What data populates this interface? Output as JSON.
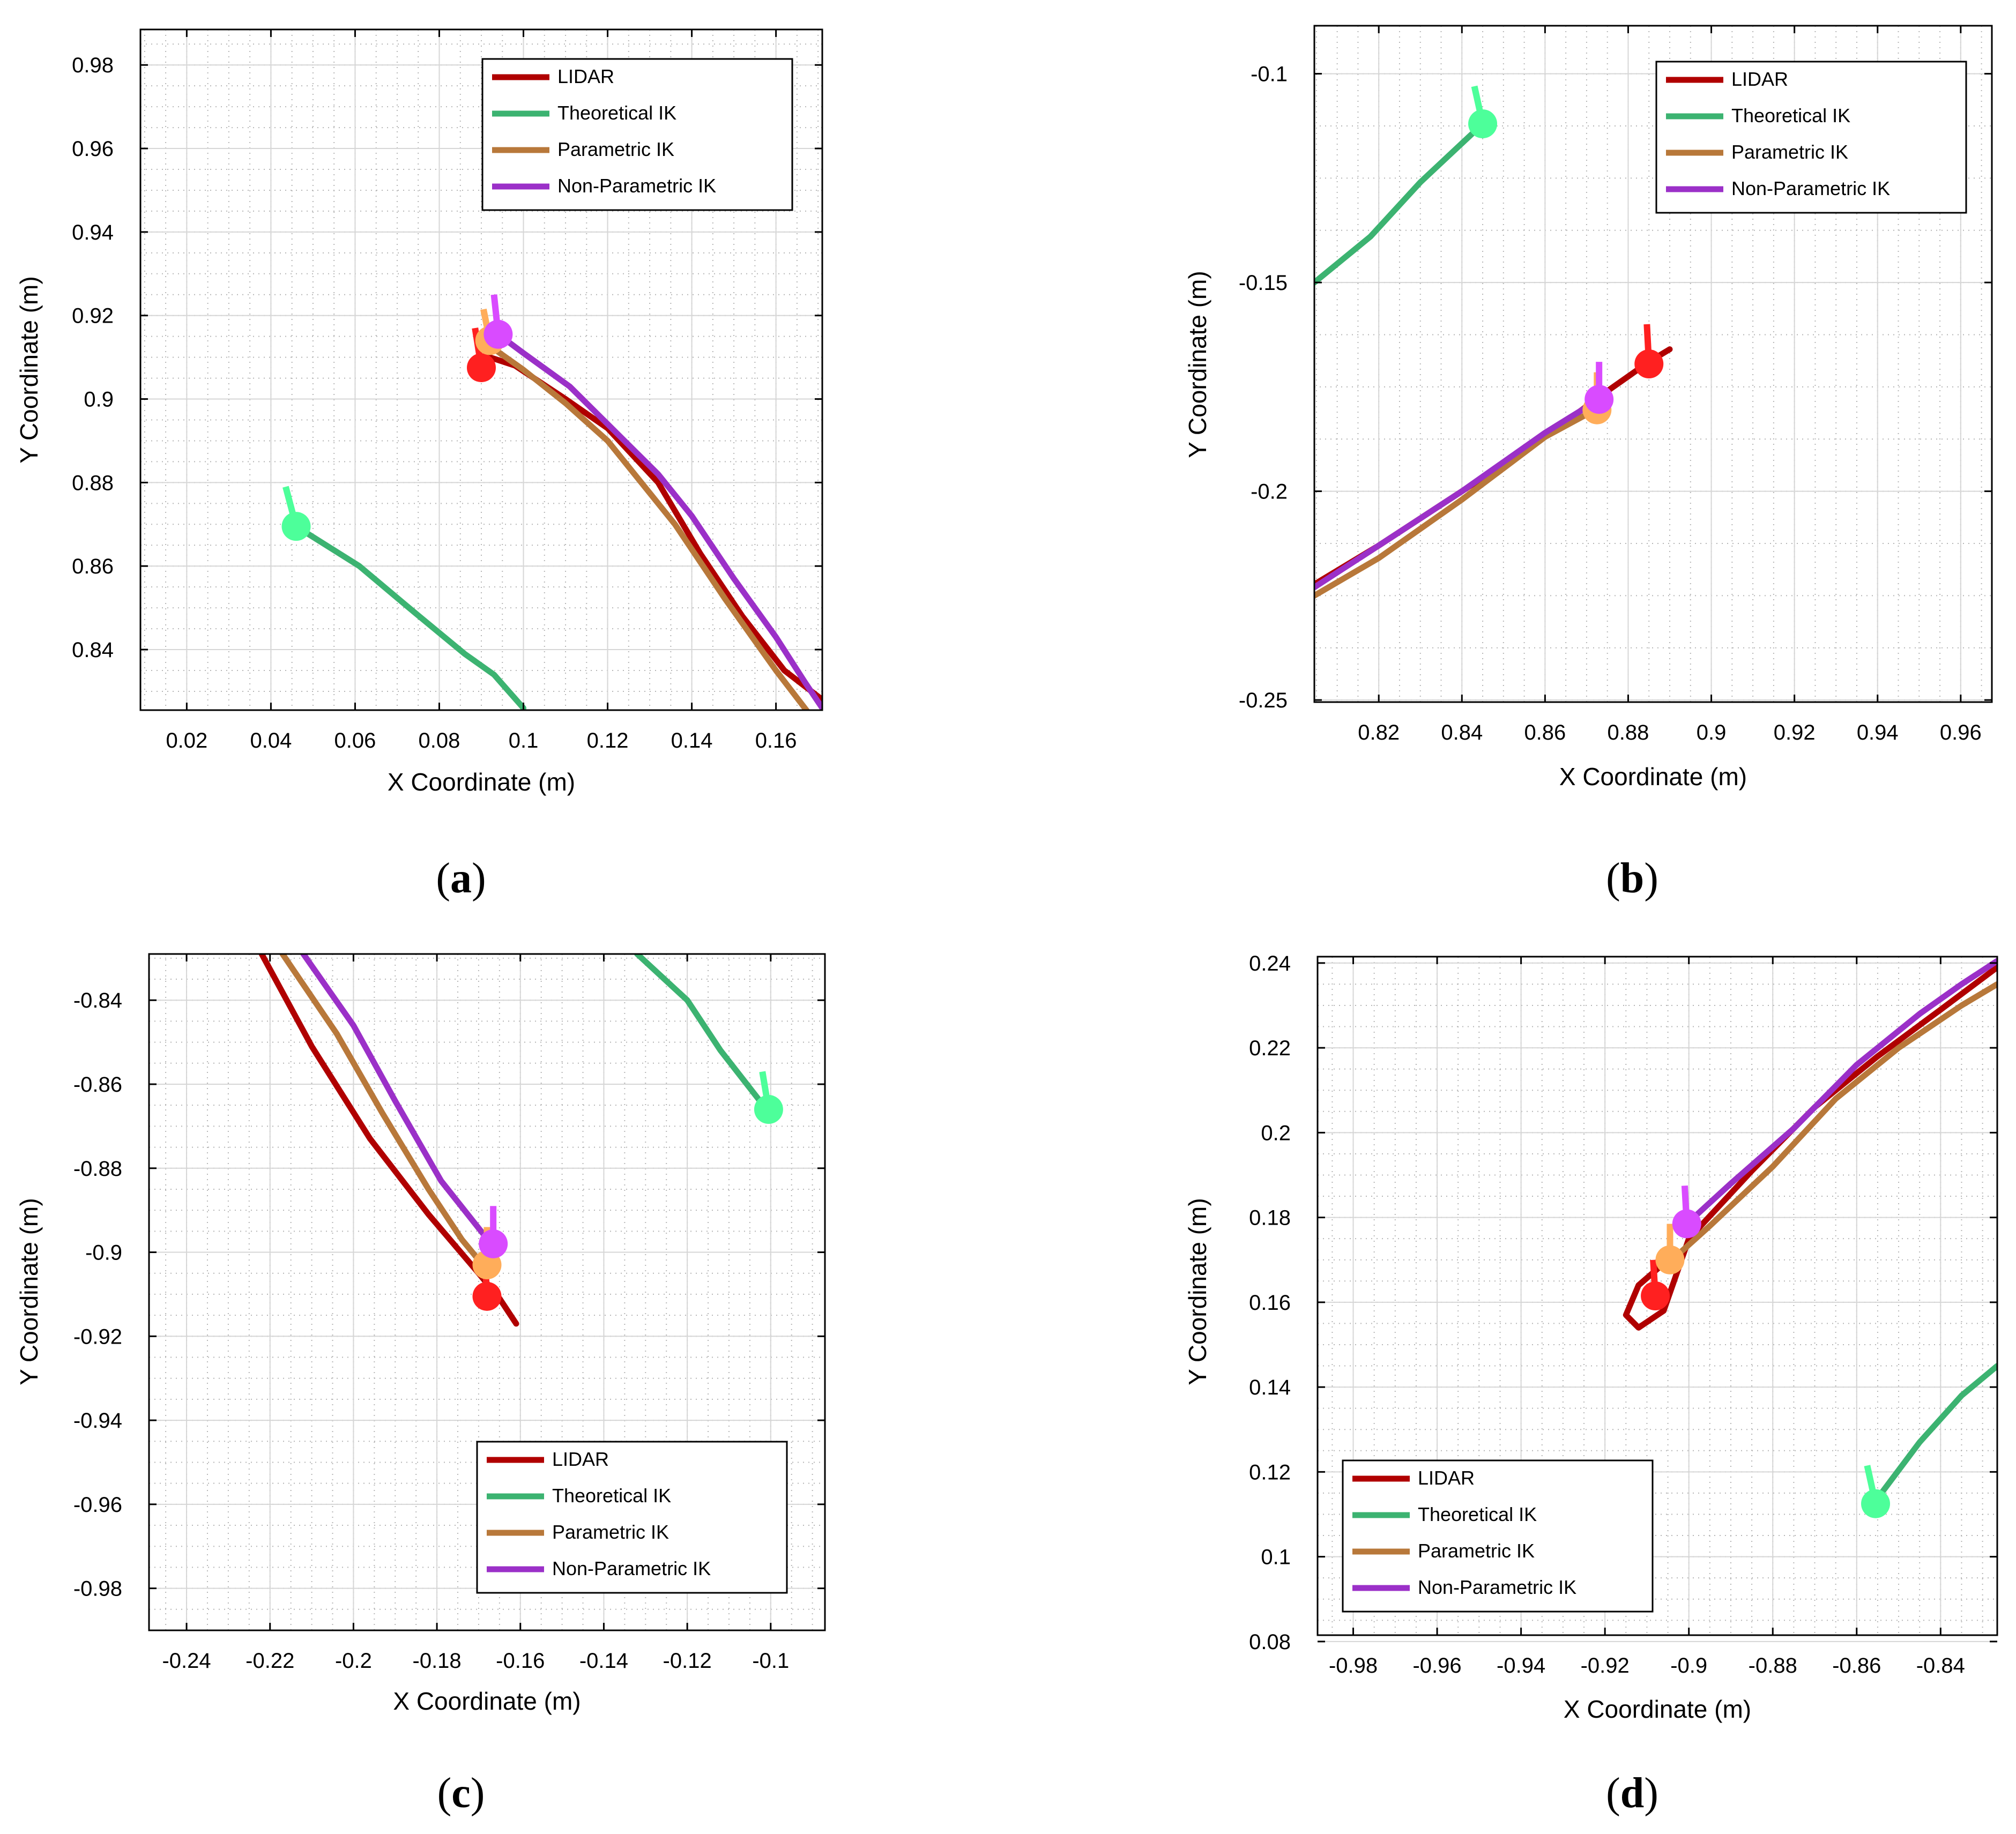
{
  "figure": {
    "series_names": [
      "LIDAR",
      "Theoretical IK",
      "Parametric IK",
      "Non-Parametric IK"
    ],
    "series_colors": [
      "#b00000",
      "#3cb371",
      "#b8783a",
      "#9b30c8"
    ],
    "marker_colors": [
      "#ff2020",
      "#4dff9a",
      "#ffad5a",
      "#d94bff"
    ]
  },
  "chart_data": [
    {
      "type": "line",
      "panel_label": "a",
      "xlabel": "X Coordinate (m)",
      "ylabel": "Y Coordinate (m)",
      "xlim": [
        0.009,
        0.171
      ],
      "ylim": [
        0.8255,
        0.9885
      ],
      "xticks": [
        0.02,
        0.04,
        0.06,
        0.08,
        0.1,
        0.12,
        0.14,
        0.16
      ],
      "xtick_labels": [
        "0.02",
        "0.04",
        "0.06",
        "0.08",
        "0.1",
        "0.12",
        "0.14",
        "0.16"
      ],
      "yticks": [
        0.84,
        0.86,
        0.88,
        0.9,
        0.92,
        0.94,
        0.96,
        0.98
      ],
      "ytick_labels": [
        "0.84",
        "0.86",
        "0.88",
        "0.9",
        "0.92",
        "0.94",
        "0.96",
        "0.98"
      ],
      "legend": "top-right",
      "legend_entries": [
        "LIDAR",
        "Theoretical IK",
        "Parametric IK",
        "Non-Parametric IK"
      ],
      "grid": true,
      "series": [
        {
          "name": "LIDAR",
          "x": [
            0.092,
            0.098,
            0.11,
            0.12,
            0.132,
            0.142,
            0.152,
            0.162,
            0.171
          ],
          "y": [
            0.91,
            0.908,
            0.9,
            0.893,
            0.88,
            0.863,
            0.848,
            0.835,
            0.828
          ],
          "marker": [
            0.09,
            0.9075
          ],
          "marker_dir": [
            -0.0015,
            0.0095
          ]
        },
        {
          "name": "Theoretical IK",
          "x": [
            0.046,
            0.061,
            0.074,
            0.086,
            0.093,
            0.1
          ],
          "y": [
            0.8695,
            0.86,
            0.849,
            0.839,
            0.834,
            0.826
          ],
          "marker": [
            0.046,
            0.8695
          ],
          "marker_dir": [
            -0.0025,
            0.0095
          ]
        },
        {
          "name": "Parametric IK",
          "x": [
            0.093,
            0.1,
            0.11,
            0.12,
            0.136,
            0.148,
            0.16,
            0.168
          ],
          "y": [
            0.912,
            0.907,
            0.899,
            0.89,
            0.87,
            0.852,
            0.835,
            0.8245
          ],
          "marker": [
            0.092,
            0.914
          ],
          "marker_dir": [
            -0.0015,
            0.0075
          ]
        },
        {
          "name": "Non-Parametric IK",
          "x": [
            0.094,
            0.1,
            0.111,
            0.122,
            0.132,
            0.14,
            0.15,
            0.16,
            0.167,
            0.171
          ],
          "y": [
            0.9155,
            0.911,
            0.903,
            0.892,
            0.882,
            0.872,
            0.857,
            0.843,
            0.832,
            0.826
          ],
          "marker": [
            0.094,
            0.9155
          ],
          "marker_dir": [
            -0.001,
            0.0095
          ]
        }
      ]
    },
    {
      "type": "line",
      "panel_label": "b",
      "xlabel": "X Coordinate (m)",
      "ylabel": "Y Coordinate (m)",
      "xlim": [
        0.8045,
        0.9675
      ],
      "ylim": [
        -0.2505,
        -0.0885
      ],
      "xticks": [
        0.82,
        0.84,
        0.86,
        0.88,
        0.9,
        0.92,
        0.94,
        0.96
      ],
      "xtick_labels": [
        "0.82",
        "0.84",
        "0.86",
        "0.88",
        "0.9",
        "0.92",
        "0.94",
        "0.96"
      ],
      "yticks": [
        -0.25,
        -0.2,
        -0.15,
        -0.1
      ],
      "ytick_labels": [
        "-0.25",
        "-0.2",
        "-0.15",
        "-0.1"
      ],
      "legend": "top-right",
      "legend_entries": [
        "LIDAR",
        "Theoretical IK",
        "Parametric IK",
        "Non-Parametric IK"
      ],
      "grid": true,
      "series": [
        {
          "name": "LIDAR",
          "x": [
            0.805,
            0.82,
            0.84,
            0.86,
            0.875,
            0.885,
            0.89
          ],
          "y": [
            -0.222,
            -0.213,
            -0.2,
            -0.187,
            -0.176,
            -0.169,
            -0.166
          ],
          "marker": [
            0.885,
            -0.1695
          ],
          "marker_dir": [
            -0.0005,
            0.0095
          ]
        },
        {
          "name": "Theoretical IK",
          "x": [
            0.8045,
            0.818,
            0.83,
            0.845
          ],
          "y": [
            -0.15,
            -0.139,
            -0.126,
            -0.112
          ],
          "marker": [
            0.845,
            -0.112
          ],
          "marker_dir": [
            -0.002,
            0.009
          ]
        },
        {
          "name": "Parametric IK",
          "x": [
            0.8045,
            0.82,
            0.84,
            0.86,
            0.873
          ],
          "y": [
            -0.225,
            -0.216,
            -0.202,
            -0.187,
            -0.18
          ],
          "marker": [
            0.8725,
            -0.1805
          ],
          "marker_dir": [
            0,
            0.009
          ]
        },
        {
          "name": "Non-Parametric IK",
          "x": [
            0.8045,
            0.82,
            0.84,
            0.86,
            0.873
          ],
          "y": [
            -0.223,
            -0.213,
            -0.2,
            -0.186,
            -0.178
          ],
          "marker": [
            0.873,
            -0.178
          ],
          "marker_dir": [
            0,
            0.009
          ]
        }
      ]
    },
    {
      "type": "line",
      "panel_label": "c",
      "xlabel": "X Coordinate (m)",
      "ylabel": "Y Coordinate (m)",
      "xlim": [
        -0.249,
        -0.087
      ],
      "ylim": [
        -0.99,
        -0.829
      ],
      "xticks": [
        -0.24,
        -0.22,
        -0.2,
        -0.18,
        -0.16,
        -0.14,
        -0.12,
        -0.1
      ],
      "xtick_labels": [
        "-0.24",
        "-0.22",
        "-0.2",
        "-0.18",
        "-0.16",
        "-0.14",
        "-0.12",
        "-0.1"
      ],
      "yticks": [
        -0.98,
        -0.96,
        -0.94,
        -0.92,
        -0.9,
        -0.88,
        -0.86,
        -0.84
      ],
      "ytick_labels": [
        "-0.98",
        "-0.96",
        "-0.94",
        "-0.92",
        "-0.9",
        "-0.88",
        "-0.86",
        "-0.84"
      ],
      "legend": "bottom-right",
      "legend_entries": [
        "LIDAR",
        "Theoretical IK",
        "Parametric IK",
        "Non-Parametric IK"
      ],
      "grid": true,
      "series": [
        {
          "name": "LIDAR",
          "x": [
            -0.222,
            -0.21,
            -0.196,
            -0.182,
            -0.17,
            -0.165,
            -0.161
          ],
          "y": [
            -0.829,
            -0.851,
            -0.873,
            -0.891,
            -0.905,
            -0.911,
            -0.917
          ],
          "marker": [
            -0.168,
            -0.9105
          ],
          "marker_dir": [
            -0.0005,
            0.0095
          ]
        },
        {
          "name": "Theoretical IK",
          "x": [
            -0.132,
            -0.12,
            -0.112,
            -0.101
          ],
          "y": [
            -0.829,
            -0.84,
            -0.852,
            -0.866
          ],
          "marker": [
            -0.1005,
            -0.866
          ],
          "marker_dir": [
            -0.0015,
            0.009
          ]
        },
        {
          "name": "Parametric IK",
          "x": [
            -0.217,
            -0.204,
            -0.193,
            -0.182,
            -0.174,
            -0.169
          ],
          "y": [
            -0.829,
            -0.848,
            -0.867,
            -0.885,
            -0.897,
            -0.903
          ],
          "marker": [
            -0.168,
            -0.903
          ],
          "marker_dir": [
            0,
            0.009
          ]
        },
        {
          "name": "Non-Parametric IK",
          "x": [
            -0.212,
            -0.2,
            -0.19,
            -0.179,
            -0.171,
            -0.167
          ],
          "y": [
            -0.829,
            -0.846,
            -0.864,
            -0.883,
            -0.893,
            -0.898
          ],
          "marker": [
            -0.1665,
            -0.898
          ],
          "marker_dir": [
            0,
            0.009
          ]
        }
      ]
    },
    {
      "type": "line",
      "panel_label": "d",
      "xlabel": "X Coordinate (m)",
      "ylabel": "Y Coordinate (m)",
      "xlim": [
        -0.9885,
        -0.8265
      ],
      "ylim": [
        0.0815,
        0.2415
      ],
      "xticks": [
        -0.98,
        -0.96,
        -0.94,
        -0.92,
        -0.9,
        -0.88,
        -0.86,
        -0.84
      ],
      "xtick_labels": [
        "-0.98",
        "-0.96",
        "-0.94",
        "-0.92",
        "-0.9",
        "-0.88",
        "-0.86",
        "-0.84"
      ],
      "yticks": [
        0.08,
        0.1,
        0.12,
        0.14,
        0.16,
        0.18,
        0.2,
        0.22,
        0.24
      ],
      "ytick_labels": [
        "0.08",
        "0.1",
        "0.12",
        "0.14",
        "0.16",
        "0.18",
        "0.2",
        "0.22",
        "0.24"
      ],
      "legend": "bottom-left",
      "legend_entries": [
        "LIDAR",
        "Theoretical IK",
        "Parametric IK",
        "Non-Parametric IK"
      ],
      "grid": true,
      "series": [
        {
          "name": "LIDAR",
          "x": [
            -0.905,
            -0.912,
            -0.915,
            -0.912,
            -0.906,
            -0.9,
            -0.885,
            -0.87,
            -0.855,
            -0.84,
            -0.8265
          ],
          "y": [
            0.17,
            0.164,
            0.157,
            0.154,
            0.158,
            0.175,
            0.191,
            0.206,
            0.218,
            0.229,
            0.239
          ],
          "marker": [
            -0.908,
            0.1615
          ],
          "marker_dir": [
            -0.0005,
            0.0085
          ]
        },
        {
          "name": "Theoretical IK",
          "x": [
            -0.856,
            -0.845,
            -0.835,
            -0.8265
          ],
          "y": [
            0.1125,
            0.127,
            0.138,
            0.145
          ],
          "marker": [
            -0.8555,
            0.1125
          ],
          "marker_dir": [
            -0.002,
            0.009
          ]
        },
        {
          "name": "Parametric IK",
          "x": [
            -0.904,
            -0.895,
            -0.88,
            -0.865,
            -0.85,
            -0.835,
            -0.8265
          ],
          "y": [
            0.17,
            0.178,
            0.192,
            0.208,
            0.22,
            0.23,
            0.235
          ],
          "marker": [
            -0.9045,
            0.17
          ],
          "marker_dir": [
            0,
            0.0085
          ]
        },
        {
          "name": "Non-Parametric IK",
          "x": [
            -0.9005,
            -0.89,
            -0.875,
            -0.86,
            -0.845,
            -0.835,
            -0.8265
          ],
          "y": [
            0.1785,
            0.188,
            0.201,
            0.216,
            0.228,
            0.235,
            0.2405
          ],
          "marker": [
            -0.9005,
            0.1785
          ],
          "marker_dir": [
            -0.0005,
            0.009
          ]
        }
      ]
    }
  ]
}
